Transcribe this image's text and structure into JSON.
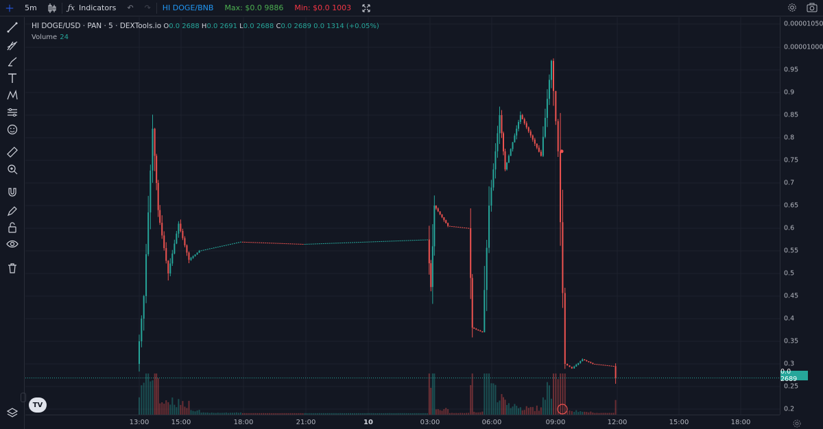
{
  "toolbar": {
    "interval": "5m",
    "indicators_label": "Indicators",
    "pair": "HI DOGE/BNB",
    "max_label": "Max: $0.0 9886",
    "min_label": "Min: $0.0 1003"
  },
  "legend": {
    "symbol": "HI DOGE/USD · PAN · 5 · DEXTools.io",
    "open_label": "O",
    "open_value": "0.0 2688",
    "high_label": "H",
    "high_value": "0.0 2691",
    "low_label": "L",
    "low_value": "0.0 2688",
    "close_label": "C",
    "close_value": "0.0 2689",
    "change_value": "0.0 1314 (+0.05%)",
    "volume_label": "Volume",
    "volume_value": "24"
  },
  "price_axis": {
    "labels": [
      "0.00001050",
      "0.00001000",
      "0.95",
      "0.9",
      "0.85",
      "0.8",
      "0.75",
      "0.7",
      "0.65",
      "0.6",
      "0.55",
      "0.5",
      "0.45",
      "0.4",
      "0.35",
      "0.3",
      "0.25",
      "0.2"
    ],
    "last_price": "0.0 2689"
  },
  "time_axis": {
    "labels": [
      "13:00",
      "15:00",
      "18:00",
      "21:00",
      "10",
      "03:00",
      "06:00",
      "09:00",
      "12:00",
      "15:00",
      "18:00"
    ]
  },
  "colors": {
    "up": "#26a69a",
    "down": "#ef5350",
    "background": "#131722",
    "grid": "#1e222d"
  },
  "icons": {
    "logo": "TV"
  },
  "chart_data": {
    "type": "candlestick",
    "interval": "5m",
    "ylim": [
      0.18,
      1.0
    ],
    "series_close": [
      {
        "t": "13:00",
        "v": 0.3
      },
      {
        "t": "13:20",
        "v": 0.45
      },
      {
        "t": "13:45",
        "v": 0.82
      },
      {
        "t": "14:00",
        "v": 0.64
      },
      {
        "t": "14:30",
        "v": 0.5
      },
      {
        "t": "15:00",
        "v": 0.61
      },
      {
        "t": "15:30",
        "v": 0.53
      },
      {
        "t": "16:00",
        "v": 0.55
      },
      {
        "t": "18:00",
        "v": 0.57
      },
      {
        "t": "21:00",
        "v": 0.565
      },
      {
        "t": "03:00",
        "v": 0.575
      },
      {
        "t": "03:10",
        "v": 0.47
      },
      {
        "t": "03:20",
        "v": 0.65
      },
      {
        "t": "04:00",
        "v": 0.605
      },
      {
        "t": "05:00",
        "v": 0.6
      },
      {
        "t": "05:10",
        "v": 0.38
      },
      {
        "t": "05:40",
        "v": 0.37
      },
      {
        "t": "06:00",
        "v": 0.65
      },
      {
        "t": "06:30",
        "v": 0.85
      },
      {
        "t": "06:45",
        "v": 0.73
      },
      {
        "t": "07:30",
        "v": 0.85
      },
      {
        "t": "08:30",
        "v": 0.76
      },
      {
        "t": "09:00",
        "v": 0.97
      },
      {
        "t": "09:20",
        "v": 0.77
      },
      {
        "t": "09:40",
        "v": 0.3
      },
      {
        "t": "10:00",
        "v": 0.29
      },
      {
        "t": "10:30",
        "v": 0.31
      },
      {
        "t": "11:00",
        "v": 0.3
      },
      {
        "t": "12:00",
        "v": 0.295
      },
      {
        "t": "14:00",
        "v": 0.2689
      }
    ],
    "last_price": 0.2689
  }
}
